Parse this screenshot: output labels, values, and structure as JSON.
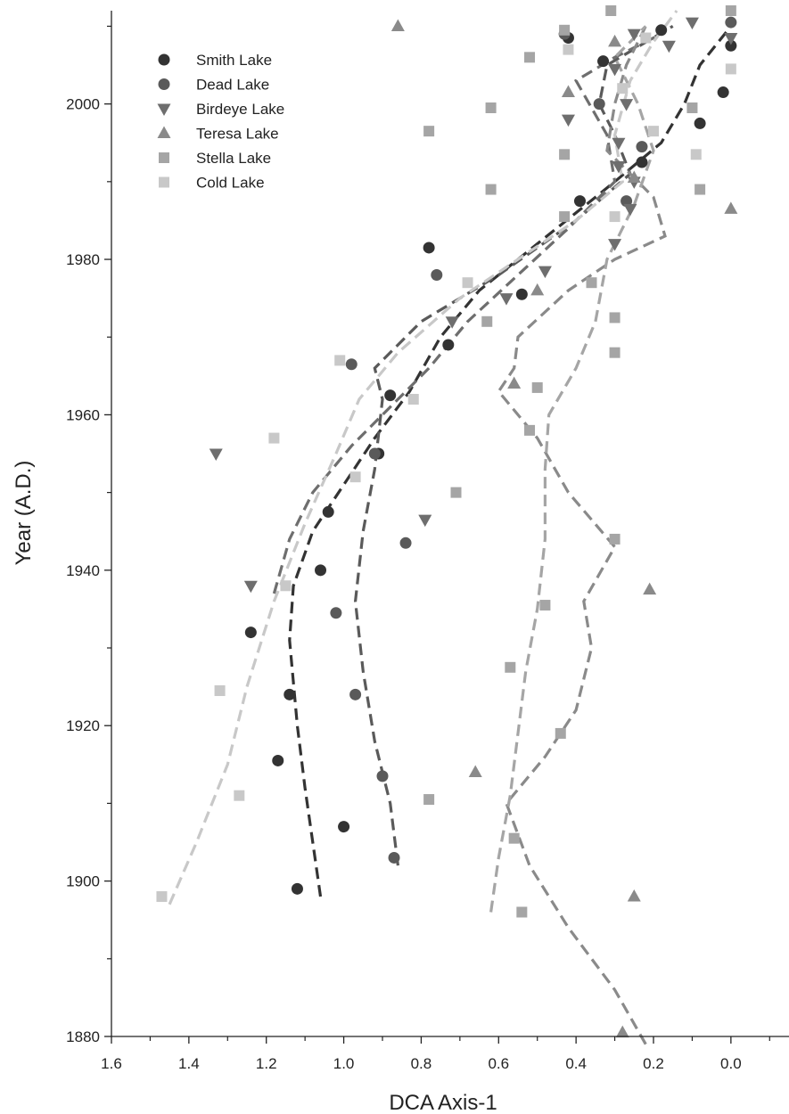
{
  "chart_data": {
    "type": "scatter",
    "xlabel": "DCA Axis-1",
    "ylabel": "Year (A.D.)",
    "xlim": [
      1.6,
      -0.15
    ],
    "x_reversed": true,
    "ylim": [
      1880,
      2012
    ],
    "xticks": [
      1.6,
      1.4,
      1.2,
      1.0,
      0.8,
      0.6,
      0.4,
      0.2,
      0.0
    ],
    "xtick_labels": [
      "1.6",
      "1.4",
      "1.2",
      "1.0",
      "0.8",
      "0.6",
      "0.4",
      "0.2",
      "0.0"
    ],
    "yticks": [
      1880,
      1900,
      1920,
      1940,
      1960,
      1980,
      2000
    ],
    "ytick_labels": [
      "1880",
      "1900",
      "1920",
      "1940",
      "1960",
      "1980",
      "2000"
    ],
    "legend_position": "top-left",
    "series": [
      {
        "name": "Smith Lake",
        "marker": "circle",
        "color": "#333333",
        "points": [
          [
            1.12,
            1899
          ],
          [
            1.0,
            1907
          ],
          [
            1.17,
            1915.5
          ],
          [
            1.14,
            1924
          ],
          [
            1.24,
            1932
          ],
          [
            1.06,
            1940
          ],
          [
            1.04,
            1947.5
          ],
          [
            0.91,
            1955
          ],
          [
            0.88,
            1962.5
          ],
          [
            0.73,
            1969
          ],
          [
            0.54,
            1975.5
          ],
          [
            0.78,
            1981.5
          ],
          [
            0.39,
            1987.5
          ],
          [
            0.23,
            1992.5
          ],
          [
            0.08,
            1997.5
          ],
          [
            0.02,
            2001.5
          ],
          [
            0.33,
            2005.5
          ],
          [
            0.18,
            2009.5
          ],
          [
            0.0,
            2007.5
          ],
          [
            0.42,
            2008.5
          ]
        ],
        "trend": [
          [
            1.06,
            1898
          ],
          [
            1.08,
            1905
          ],
          [
            1.1,
            1912
          ],
          [
            1.12,
            1920
          ],
          [
            1.14,
            1931
          ],
          [
            1.13,
            1938
          ],
          [
            1.08,
            1945
          ],
          [
            1.0,
            1951
          ],
          [
            0.92,
            1957
          ],
          [
            0.83,
            1963
          ],
          [
            0.75,
            1970
          ],
          [
            0.65,
            1976
          ],
          [
            0.55,
            1980
          ],
          [
            0.45,
            1984
          ],
          [
            0.3,
            1990
          ],
          [
            0.18,
            1995
          ],
          [
            0.12,
            2000
          ],
          [
            0.08,
            2005
          ],
          [
            0.0,
            2010
          ]
        ]
      },
      {
        "name": "Dead Lake",
        "marker": "circle",
        "color": "#5a5a5a",
        "points": [
          [
            0.87,
            1903
          ],
          [
            0.9,
            1913.5
          ],
          [
            0.97,
            1924
          ],
          [
            1.02,
            1934.5
          ],
          [
            0.84,
            1943.5
          ],
          [
            0.92,
            1955
          ],
          [
            0.98,
            1966.5
          ],
          [
            0.76,
            1978
          ],
          [
            0.27,
            1987.5
          ],
          [
            0.23,
            1994.5
          ],
          [
            0.34,
            2000
          ],
          [
            0.0,
            2010.5
          ],
          [
            0.43,
            2009
          ]
        ],
        "trend": [
          [
            0.86,
            1902
          ],
          [
            0.88,
            1910
          ],
          [
            0.92,
            1918
          ],
          [
            0.95,
            1927
          ],
          [
            0.97,
            1936
          ],
          [
            0.95,
            1945
          ],
          [
            0.92,
            1953
          ],
          [
            0.9,
            1962
          ],
          [
            0.92,
            1966
          ],
          [
            0.8,
            1972
          ],
          [
            0.6,
            1978
          ],
          [
            0.4,
            1985
          ],
          [
            0.26,
            1991
          ],
          [
            0.3,
            1996
          ],
          [
            0.34,
            2000
          ],
          [
            0.32,
            2005
          ],
          [
            0.15,
            2010
          ]
        ]
      },
      {
        "name": "Birdeye Lake",
        "marker": "triangle-down",
        "color": "#6e6e6e",
        "points": [
          [
            1.33,
            1955
          ],
          [
            1.24,
            1938
          ],
          [
            0.79,
            1946.5
          ],
          [
            0.72,
            1972
          ],
          [
            0.58,
            1975
          ],
          [
            0.48,
            1978.5
          ],
          [
            0.3,
            1982
          ],
          [
            0.26,
            1986.5
          ],
          [
            0.25,
            1990
          ],
          [
            0.29,
            1992
          ],
          [
            0.29,
            1995
          ],
          [
            0.42,
            1998
          ],
          [
            0.27,
            2000
          ],
          [
            0.3,
            2004.5
          ],
          [
            0.25,
            2009
          ],
          [
            0.16,
            2007.5
          ],
          [
            0.1,
            2010.5
          ],
          [
            0.0,
            2008.5
          ]
        ],
        "trend": [
          [
            1.18,
            1937
          ],
          [
            1.14,
            1944
          ],
          [
            1.08,
            1950
          ],
          [
            0.98,
            1956
          ],
          [
            0.88,
            1961
          ],
          [
            0.78,
            1966
          ],
          [
            0.68,
            1972
          ],
          [
            0.55,
            1978
          ],
          [
            0.42,
            1984
          ],
          [
            0.3,
            1990
          ],
          [
            0.32,
            1996
          ],
          [
            0.4,
            2003
          ],
          [
            0.3,
            2006
          ],
          [
            0.18,
            2009
          ]
        ]
      },
      {
        "name": "Teresa Lake",
        "marker": "triangle-up",
        "color": "#8a8a8a",
        "points": [
          [
            0.28,
            1880.5
          ],
          [
            0.25,
            1898
          ],
          [
            0.66,
            1914
          ],
          [
            0.21,
            1937.5
          ],
          [
            0.56,
            1964
          ],
          [
            0.5,
            1976
          ],
          [
            0.0,
            1986.5
          ],
          [
            0.42,
            2001.5
          ],
          [
            0.3,
            2008
          ],
          [
            0.86,
            2010
          ],
          [
            0.25,
            1990.5
          ]
        ],
        "trend": [
          [
            0.22,
            1879
          ],
          [
            0.3,
            1886
          ],
          [
            0.42,
            1894
          ],
          [
            0.52,
            1902
          ],
          [
            0.58,
            1910
          ],
          [
            0.48,
            1916
          ],
          [
            0.4,
            1922
          ],
          [
            0.36,
            1930
          ],
          [
            0.38,
            1936
          ],
          [
            0.3,
            1943
          ],
          [
            0.42,
            1950
          ],
          [
            0.5,
            1957
          ],
          [
            0.6,
            1963
          ],
          [
            0.56,
            1966
          ],
          [
            0.55,
            1970
          ],
          [
            0.42,
            1976
          ],
          [
            0.3,
            1980
          ],
          [
            0.17,
            1983
          ],
          [
            0.2,
            1988
          ],
          [
            0.32,
            1994
          ],
          [
            0.3,
            2000
          ],
          [
            0.27,
            2005
          ],
          [
            0.22,
            2010
          ]
        ]
      },
      {
        "name": "Stella Lake",
        "marker": "square",
        "color": "#a5a5a5",
        "points": [
          [
            0.54,
            1896
          ],
          [
            0.56,
            1905.5
          ],
          [
            0.78,
            1910.5
          ],
          [
            0.44,
            1919
          ],
          [
            0.57,
            1927.5
          ],
          [
            0.48,
            1935.5
          ],
          [
            0.3,
            1944
          ],
          [
            0.71,
            1950
          ],
          [
            0.52,
            1958
          ],
          [
            0.5,
            1963.5
          ],
          [
            0.3,
            1968
          ],
          [
            0.3,
            1972.5
          ],
          [
            0.63,
            1972
          ],
          [
            0.36,
            1977
          ],
          [
            0.43,
            1985.5
          ],
          [
            0.43,
            1993.5
          ],
          [
            0.78,
            1996.5
          ],
          [
            0.62,
            1989
          ],
          [
            0.62,
            1999.5
          ],
          [
            0.52,
            2006
          ],
          [
            0.43,
            2009.5
          ],
          [
            0.31,
            2012
          ],
          [
            0.0,
            2012
          ],
          [
            0.08,
            1989
          ],
          [
            0.1,
            1999.5
          ]
        ],
        "trend": [
          [
            0.62,
            1896
          ],
          [
            0.6,
            1903
          ],
          [
            0.57,
            1911
          ],
          [
            0.55,
            1919
          ],
          [
            0.53,
            1927
          ],
          [
            0.5,
            1935
          ],
          [
            0.48,
            1944
          ],
          [
            0.48,
            1953
          ],
          [
            0.47,
            1960
          ],
          [
            0.4,
            1966
          ],
          [
            0.35,
            1972
          ],
          [
            0.32,
            1980
          ],
          [
            0.25,
            1987
          ],
          [
            0.2,
            1994
          ],
          [
            0.24,
            2000
          ],
          [
            0.3,
            2006
          ],
          [
            0.22,
            2010
          ]
        ]
      },
      {
        "name": "Cold Lake",
        "marker": "square",
        "color": "#c8c8c8",
        "points": [
          [
            1.47,
            1898
          ],
          [
            1.27,
            1911
          ],
          [
            1.32,
            1924.5
          ],
          [
            1.15,
            1938
          ],
          [
            1.18,
            1957
          ],
          [
            0.97,
            1952
          ],
          [
            1.01,
            1967
          ],
          [
            0.82,
            1962
          ],
          [
            0.68,
            1977
          ],
          [
            0.3,
            1985.5
          ],
          [
            0.2,
            1996.5
          ],
          [
            0.09,
            1993.5
          ],
          [
            0.22,
            2008.5
          ],
          [
            0.42,
            2007
          ],
          [
            0.0,
            2004.5
          ],
          [
            0.28,
            2002
          ]
        ],
        "trend": [
          [
            1.45,
            1897
          ],
          [
            1.38,
            1905
          ],
          [
            1.3,
            1915
          ],
          [
            1.25,
            1925
          ],
          [
            1.18,
            1936
          ],
          [
            1.1,
            1946
          ],
          [
            1.02,
            1955
          ],
          [
            0.96,
            1962
          ],
          [
            0.86,
            1968
          ],
          [
            0.7,
            1975
          ],
          [
            0.55,
            1980
          ],
          [
            0.4,
            1985
          ],
          [
            0.28,
            1990
          ],
          [
            0.3,
            1996
          ],
          [
            0.26,
            2003
          ],
          [
            0.2,
            2008
          ],
          [
            0.14,
            2012
          ]
        ]
      }
    ]
  }
}
